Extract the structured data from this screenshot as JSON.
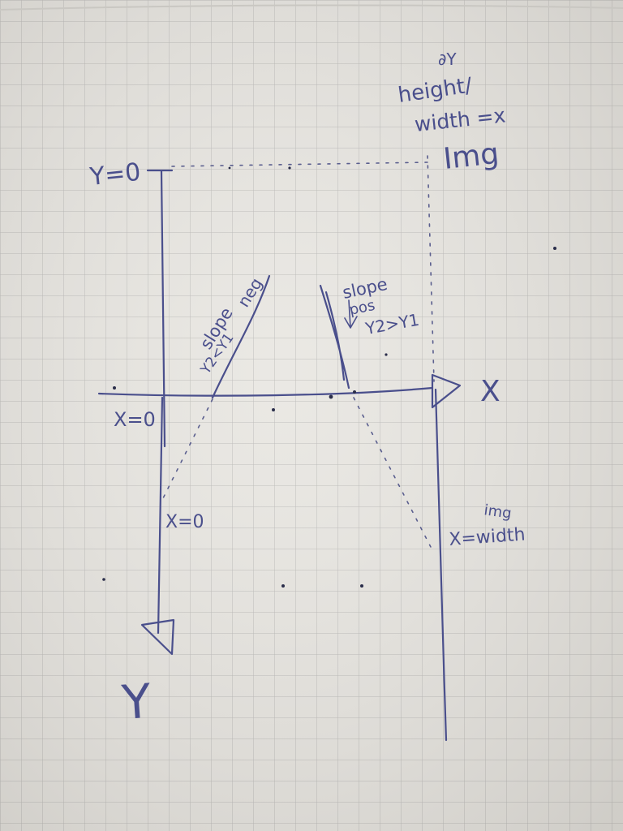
{
  "sheet": {
    "paper_color": "#e8e6e1",
    "grid_color": "#b9b8b6",
    "ink_color": "#4a4f8c"
  },
  "labels": {
    "y_origin": "Y=0",
    "x_origin": "X=0",
    "x_zero_lower": "X=0",
    "x_axis": "X",
    "y_axis": "Y",
    "image_heading_top": "∂Y",
    "image_heading_height": "height/",
    "image_heading_width": "width =x",
    "image_heading_img": "Img",
    "slope_neg_word": "slope",
    "slope_neg_sign": "neg",
    "slope_neg_cond": "Y2<Y1",
    "slope_pos_word": "slope",
    "slope_pos_sign": "pos",
    "slope_pos_cond": "Y2>Y1",
    "img_width_top": "img",
    "img_width_bottom": "X=width"
  }
}
